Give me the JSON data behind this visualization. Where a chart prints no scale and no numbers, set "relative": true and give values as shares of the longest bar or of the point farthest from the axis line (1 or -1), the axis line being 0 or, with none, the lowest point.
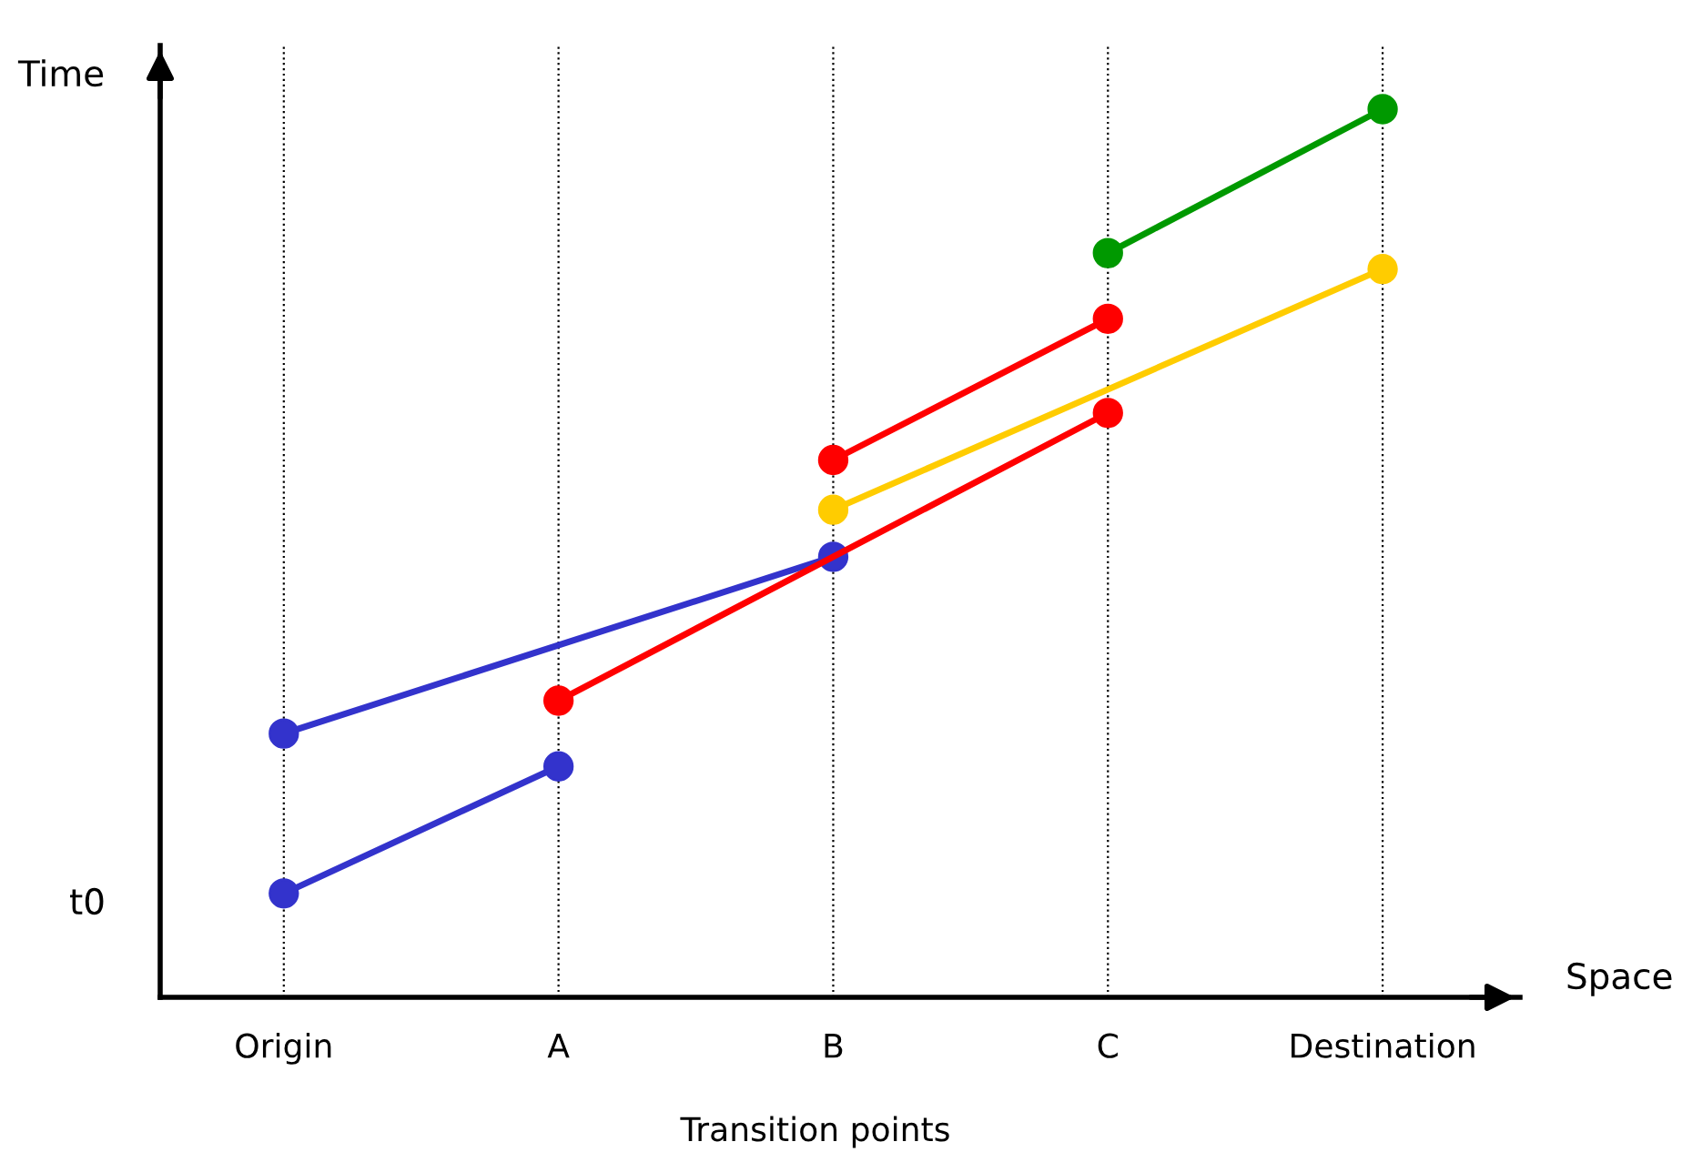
{
  "chart_data": {
    "type": "line",
    "relative": true,
    "xlabel": "Space",
    "ylabel": "Time",
    "categories": [
      "Origin",
      "A",
      "B",
      "C",
      "Destination"
    ],
    "series": [
      {
        "color": "#3333cc",
        "values": [
          0.117,
          0.26,
          null,
          null,
          null
        ]
      },
      {
        "color": "#3333cc",
        "values": [
          0.297,
          null,
          0.496,
          null,
          null
        ]
      },
      {
        "color": "#ff0000",
        "values": [
          null,
          0.334,
          null,
          0.658,
          null
        ]
      },
      {
        "color": "#ff0000",
        "values": [
          null,
          null,
          0.605,
          0.764,
          null
        ]
      },
      {
        "color": "#ffcc00",
        "values": [
          null,
          null,
          0.549,
          null,
          0.82
        ]
      },
      {
        "color": "#009900",
        "values": [
          null,
          null,
          null,
          0.838,
          1
        ]
      }
    ],
    "annotations": [
      "t0",
      "Transition points"
    ],
    "marker": "circle",
    "line_style": "solid",
    "grid": "x",
    "legend": false
  }
}
